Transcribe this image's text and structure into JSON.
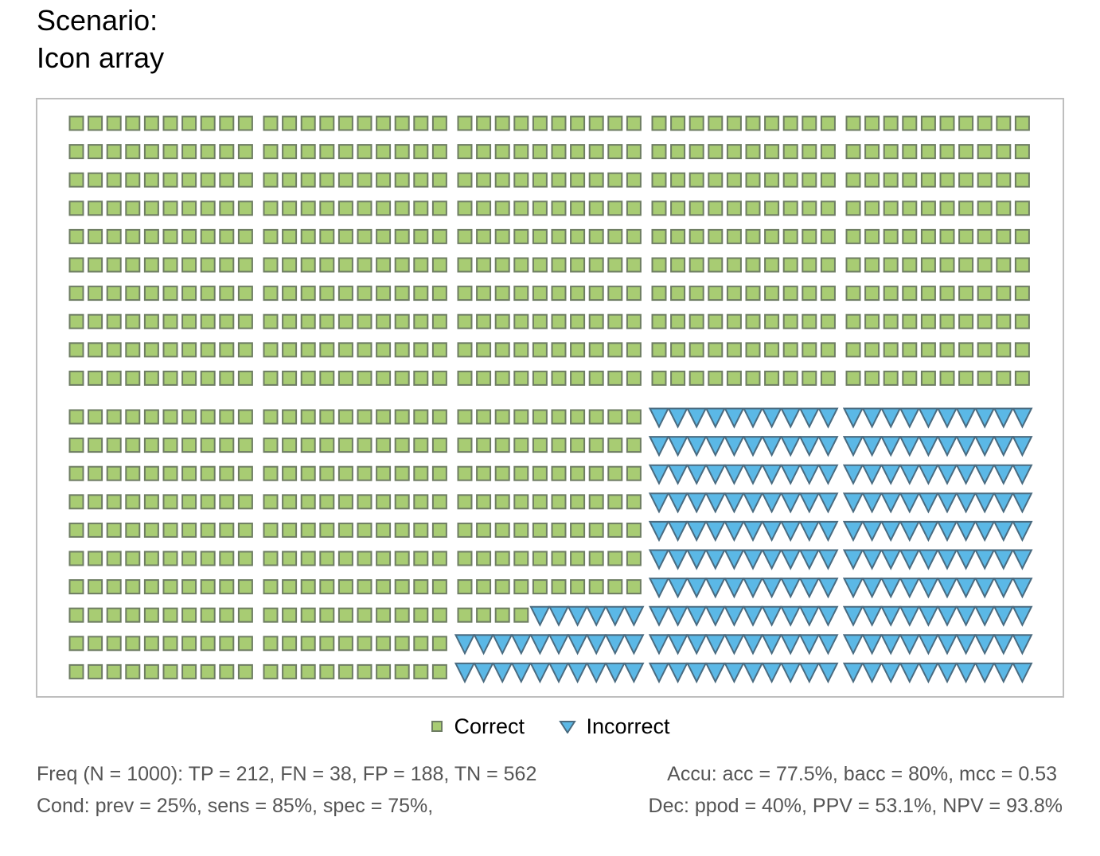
{
  "title": {
    "line1": "Scenario:",
    "line2": "Icon array"
  },
  "chart_data": {
    "type": "icon_array",
    "N": 1000,
    "rows": 20,
    "columns": 50,
    "block_size": 10,
    "categories": [
      {
        "name": "Correct",
        "count": 774,
        "shape": "square",
        "fill": "#A8CC73",
        "stroke": "#6E7D63"
      },
      {
        "name": "Incorrect",
        "count": 226,
        "shape": "triangle-down",
        "fill": "#5BB8E6",
        "stroke": "#4A6B80"
      }
    ],
    "incorrect_per_column_block_from_bottom": [
      0,
      0,
      26,
      100,
      100
    ]
  },
  "legend": {
    "correct_label": "Correct",
    "incorrect_label": "Incorrect"
  },
  "footer": {
    "freq": "Freq (N = 1000):  TP = 212, FN = 38, FP = 188, TN = 562",
    "accu": "Accu:  acc = 77.5%, bacc = 80%, mcc = 0.53",
    "cond": "Cond:  prev = 25%, sens = 85%, spec = 75%,",
    "dec": "Dec:  ppod = 40%, PPV = 53.1%, NPV = 93.8%"
  },
  "colors": {
    "frame": "#BEBEBE",
    "footer_text": "#555555"
  }
}
